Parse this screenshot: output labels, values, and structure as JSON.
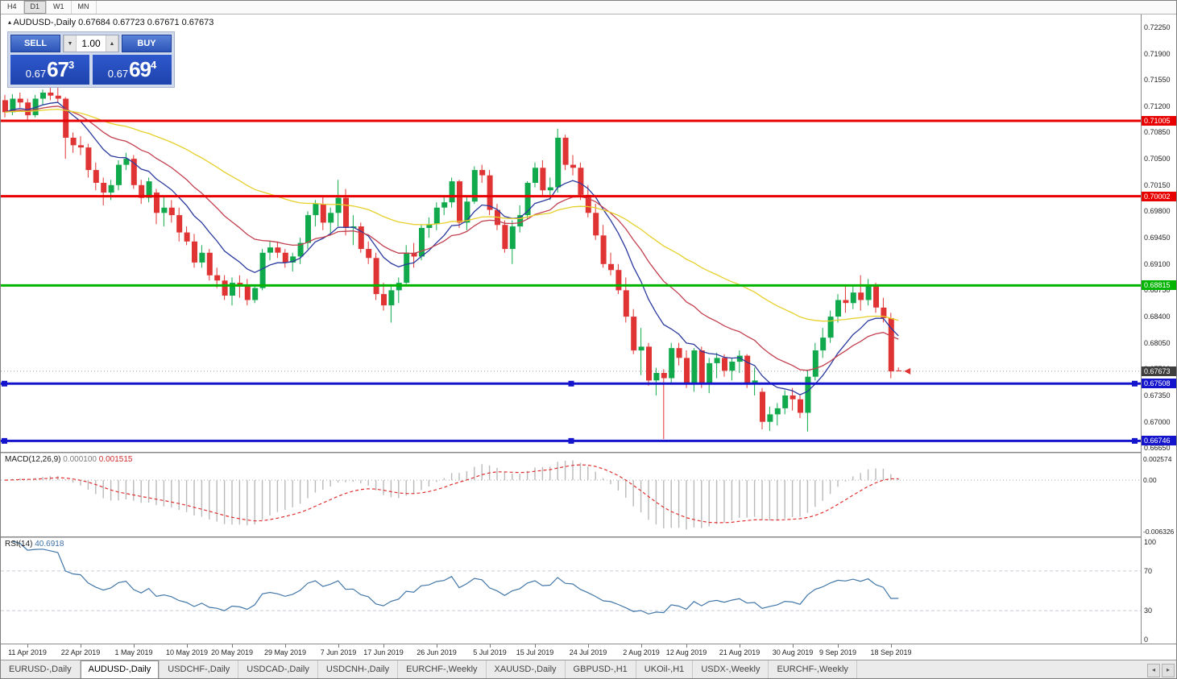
{
  "icons": {
    "collapse_triangle": "▴",
    "volume_down": "▼",
    "volume_up": "▲",
    "tab_scroll_left": "◂",
    "tab_scroll_right": "▸"
  },
  "toolbar": {
    "timeframes": [
      {
        "label": "H4",
        "active": false
      },
      {
        "label": "D1",
        "active": true
      },
      {
        "label": "W1",
        "active": false
      },
      {
        "label": "MN",
        "active": false
      }
    ]
  },
  "window": {
    "symbol_title": "AUDUSD-,Daily",
    "ohlc_text": "0.67684 0.67723 0.67671 0.67673"
  },
  "one_click": {
    "sell_label": "SELL",
    "buy_label": "BUY",
    "volume": "1.00",
    "sell_price": {
      "small": "0.67",
      "big": "67",
      "sup": "3"
    },
    "buy_price": {
      "small": "0.67",
      "big": "69",
      "sup": "4"
    }
  },
  "chart_data": {
    "type": "candlestick",
    "symbol": "AUDUSD-",
    "timeframe": "Daily",
    "up_color": "#10a94c",
    "down_color": "#e03434",
    "y_range": {
      "min": 0.666,
      "max": 0.7242
    },
    "y_ticks": [
      "0.72250",
      "0.71900",
      "0.71550",
      "0.71200",
      "0.70850",
      "0.70500",
      "0.70150",
      "0.69800",
      "0.69450",
      "0.69100",
      "0.68750",
      "0.68400",
      "0.68050",
      "0.67700",
      "0.67350",
      "0.67000",
      "0.66650"
    ],
    "x_labels": [
      {
        "i": 3,
        "t": "11 Apr 2019"
      },
      {
        "i": 10,
        "t": "22 Apr 2019"
      },
      {
        "i": 17,
        "t": "1 May 2019"
      },
      {
        "i": 24,
        "t": "10 May 2019"
      },
      {
        "i": 30,
        "t": "20 May 2019"
      },
      {
        "i": 37,
        "t": "29 May 2019"
      },
      {
        "i": 44,
        "t": "7 Jun 2019"
      },
      {
        "i": 50,
        "t": "17 Jun 2019"
      },
      {
        "i": 57,
        "t": "26 Jun 2019"
      },
      {
        "i": 64,
        "t": "5 Jul 2019"
      },
      {
        "i": 70,
        "t": "15 Jul 2019"
      },
      {
        "i": 77,
        "t": "24 Jul 2019"
      },
      {
        "i": 84,
        "t": "2 Aug 2019"
      },
      {
        "i": 90,
        "t": "12 Aug 2019"
      },
      {
        "i": 97,
        "t": "21 Aug 2019"
      },
      {
        "i": 104,
        "t": "30 Aug 2019"
      },
      {
        "i": 110,
        "t": "9 Sep 2019"
      },
      {
        "i": 117,
        "t": "18 Sep 2019"
      }
    ],
    "ohlc": [
      [
        0.7128,
        0.7135,
        0.7105,
        0.7112
      ],
      [
        0.7112,
        0.7136,
        0.7108,
        0.713
      ],
      [
        0.713,
        0.7138,
        0.7118,
        0.7125
      ],
      [
        0.7125,
        0.713,
        0.71,
        0.7108
      ],
      [
        0.7108,
        0.7135,
        0.7105,
        0.713
      ],
      [
        0.713,
        0.7142,
        0.7122,
        0.7138
      ],
      [
        0.7138,
        0.7147,
        0.7128,
        0.7134
      ],
      [
        0.7134,
        0.7145,
        0.7125,
        0.713
      ],
      [
        0.713,
        0.7132,
        0.705,
        0.7078
      ],
      [
        0.7078,
        0.7085,
        0.7058,
        0.7068
      ],
      [
        0.7068,
        0.708,
        0.7055,
        0.7065
      ],
      [
        0.7065,
        0.707,
        0.7025,
        0.7035
      ],
      [
        0.7035,
        0.7045,
        0.7008,
        0.7018
      ],
      [
        0.7018,
        0.7025,
        0.6988,
        0.7005
      ],
      [
        0.7005,
        0.7022,
        0.6995,
        0.7015
      ],
      [
        0.7015,
        0.7048,
        0.7008,
        0.7042
      ],
      [
        0.7042,
        0.7058,
        0.7035,
        0.705
      ],
      [
        0.705,
        0.7055,
        0.701,
        0.7015
      ],
      [
        0.7015,
        0.7022,
        0.699,
        0.6998
      ],
      [
        0.6998,
        0.7025,
        0.6992,
        0.702
      ],
      [
        0.7005,
        0.701,
        0.6963,
        0.6978
      ],
      [
        0.6978,
        0.7,
        0.696,
        0.6985
      ],
      [
        0.6985,
        0.6995,
        0.6965,
        0.6975
      ],
      [
        0.6975,
        0.6985,
        0.694,
        0.6952
      ],
      [
        0.6952,
        0.696,
        0.6935,
        0.694
      ],
      [
        0.694,
        0.695,
        0.6905,
        0.6912
      ],
      [
        0.6912,
        0.6935,
        0.6905,
        0.6925
      ],
      [
        0.6925,
        0.693,
        0.6888,
        0.6895
      ],
      [
        0.6895,
        0.6905,
        0.6878,
        0.6888
      ],
      [
        0.6888,
        0.6895,
        0.6862,
        0.6868
      ],
      [
        0.6868,
        0.6892,
        0.6855,
        0.6885
      ],
      [
        0.6885,
        0.6895,
        0.6865,
        0.688
      ],
      [
        0.688,
        0.689,
        0.6855,
        0.6862
      ],
      [
        0.6862,
        0.6882,
        0.6858,
        0.6878
      ],
      [
        0.6878,
        0.693,
        0.6875,
        0.6925
      ],
      [
        0.6925,
        0.694,
        0.6915,
        0.6932
      ],
      [
        0.6932,
        0.694,
        0.6918,
        0.6925
      ],
      [
        0.6925,
        0.693,
        0.6905,
        0.6912
      ],
      [
        0.6912,
        0.6925,
        0.69,
        0.692
      ],
      [
        0.692,
        0.6945,
        0.691,
        0.6938
      ],
      [
        0.6938,
        0.698,
        0.693,
        0.6975
      ],
      [
        0.6975,
        0.6995,
        0.696,
        0.699
      ],
      [
        0.699,
        0.7,
        0.6955,
        0.6965
      ],
      [
        0.6965,
        0.6985,
        0.695,
        0.6978
      ],
      [
        0.6978,
        0.7022,
        0.696,
        0.6998
      ],
      [
        0.6998,
        0.701,
        0.6948,
        0.6958
      ],
      [
        0.6958,
        0.6975,
        0.6935,
        0.696
      ],
      [
        0.696,
        0.6965,
        0.6925,
        0.693
      ],
      [
        0.693,
        0.694,
        0.691,
        0.6918
      ],
      [
        0.6918,
        0.6925,
        0.6862,
        0.687
      ],
      [
        0.687,
        0.6885,
        0.6848,
        0.6855
      ],
      [
        0.6855,
        0.6883,
        0.6832,
        0.6875
      ],
      [
        0.6875,
        0.6892,
        0.6858,
        0.6885
      ],
      [
        0.6885,
        0.6935,
        0.688,
        0.6925
      ],
      [
        0.6925,
        0.6938,
        0.6905,
        0.692
      ],
      [
        0.692,
        0.6962,
        0.6915,
        0.6958
      ],
      [
        0.6958,
        0.6972,
        0.6945,
        0.6963
      ],
      [
        0.6963,
        0.6992,
        0.6955,
        0.6985
      ],
      [
        0.6985,
        0.7,
        0.6975,
        0.6992
      ],
      [
        0.6992,
        0.7025,
        0.6985,
        0.702
      ],
      [
        0.702,
        0.7022,
        0.6958,
        0.6965
      ],
      [
        0.6965,
        0.7,
        0.6955,
        0.6993
      ],
      [
        0.6993,
        0.704,
        0.699,
        0.7035
      ],
      [
        0.7035,
        0.7042,
        0.7018,
        0.7028
      ],
      [
        0.7028,
        0.7035,
        0.6975,
        0.6982
      ],
      [
        0.6982,
        0.699,
        0.6955,
        0.6962
      ],
      [
        0.6962,
        0.6968,
        0.6925,
        0.693
      ],
      [
        0.693,
        0.6968,
        0.691,
        0.696
      ],
      [
        0.696,
        0.6988,
        0.6952,
        0.6975
      ],
      [
        0.6975,
        0.702,
        0.697,
        0.7018
      ],
      [
        0.7018,
        0.7045,
        0.7012,
        0.7038
      ],
      [
        0.7038,
        0.7048,
        0.7,
        0.7008
      ],
      [
        0.7008,
        0.7025,
        0.6995,
        0.7012
      ],
      [
        0.7012,
        0.709,
        0.7005,
        0.7078
      ],
      [
        0.7078,
        0.7082,
        0.7035,
        0.7042
      ],
      [
        0.7042,
        0.7055,
        0.7028,
        0.7038
      ],
      [
        0.7038,
        0.7045,
        0.6995,
        0.7002
      ],
      [
        0.7002,
        0.7015,
        0.6972,
        0.6978
      ],
      [
        0.6978,
        0.699,
        0.6942,
        0.6948
      ],
      [
        0.6948,
        0.6962,
        0.6905,
        0.691
      ],
      [
        0.691,
        0.6925,
        0.6895,
        0.6902
      ],
      [
        0.6902,
        0.691,
        0.687,
        0.6875
      ],
      [
        0.6875,
        0.6892,
        0.6832,
        0.684
      ],
      [
        0.684,
        0.685,
        0.679,
        0.6795
      ],
      [
        0.6795,
        0.6825,
        0.6762,
        0.68
      ],
      [
        0.68,
        0.6805,
        0.6748,
        0.6755
      ],
      [
        0.6755,
        0.6772,
        0.6735,
        0.6765
      ],
      [
        0.6765,
        0.677,
        0.6677,
        0.6758
      ],
      [
        0.6758,
        0.6805,
        0.675,
        0.6798
      ],
      [
        0.6798,
        0.6805,
        0.6775,
        0.6785
      ],
      [
        0.6785,
        0.6795,
        0.6745,
        0.6752
      ],
      [
        0.6752,
        0.6798,
        0.674,
        0.6795
      ],
      [
        0.6795,
        0.68,
        0.6745,
        0.6752
      ],
      [
        0.6752,
        0.6785,
        0.6738,
        0.6778
      ],
      [
        0.6778,
        0.6792,
        0.6758,
        0.6785
      ],
      [
        0.6785,
        0.679,
        0.676,
        0.6768
      ],
      [
        0.6768,
        0.6785,
        0.6755,
        0.678
      ],
      [
        0.678,
        0.6795,
        0.6765,
        0.6788
      ],
      [
        0.6788,
        0.679,
        0.6745,
        0.6752
      ],
      [
        0.6752,
        0.6772,
        0.6735,
        0.6755
      ],
      [
        0.674,
        0.6745,
        0.669,
        0.67
      ],
      [
        0.67,
        0.672,
        0.6688,
        0.671
      ],
      [
        0.671,
        0.6725,
        0.6695,
        0.6718
      ],
      [
        0.6718,
        0.6742,
        0.671,
        0.6735
      ],
      [
        0.6735,
        0.6745,
        0.6715,
        0.673
      ],
      [
        0.673,
        0.6735,
        0.6705,
        0.6712
      ],
      [
        0.6712,
        0.6768,
        0.6687,
        0.676
      ],
      [
        0.676,
        0.6805,
        0.6755,
        0.6795
      ],
      [
        0.6795,
        0.6825,
        0.6785,
        0.6812
      ],
      [
        0.6812,
        0.6848,
        0.6805,
        0.684
      ],
      [
        0.684,
        0.687,
        0.6832,
        0.6862
      ],
      [
        0.6862,
        0.6882,
        0.6845,
        0.6858
      ],
      [
        0.6858,
        0.688,
        0.685,
        0.6872
      ],
      [
        0.6872,
        0.6895,
        0.6848,
        0.6862
      ],
      [
        0.6862,
        0.689,
        0.6855,
        0.688
      ],
      [
        0.688,
        0.6885,
        0.6845,
        0.6852
      ],
      [
        0.6852,
        0.6865,
        0.6832,
        0.6838
      ],
      [
        0.6838,
        0.6845,
        0.6758,
        0.6767
      ],
      [
        0.67684,
        0.67723,
        0.67671,
        0.67673
      ]
    ],
    "moving_averages": [
      {
        "period": 10,
        "color": "#2b3a9e"
      },
      {
        "period": 21,
        "color": "#c2404f"
      },
      {
        "period": 50,
        "color": "#e6d02a"
      }
    ],
    "hlines": [
      {
        "price": 0.71005,
        "label": "0.71005",
        "color": "#e80000",
        "width": 3,
        "handles": false
      },
      {
        "price": 0.70002,
        "label": "0.70002",
        "color": "#e80000",
        "width": 3,
        "handles": false
      },
      {
        "price": 0.68815,
        "label": "0.68815",
        "color": "#00b400",
        "width": 3,
        "handles": false
      },
      {
        "price": 0.67508,
        "label": "0.67508",
        "color": "#1414cc",
        "width": 3,
        "handles": true
      },
      {
        "price": 0.66746,
        "label": "0.66746",
        "color": "#1414cc",
        "width": 3,
        "handles": true
      }
    ],
    "current_price": {
      "value": 0.67673,
      "label": "0.67673",
      "badge_color": "#3f3f3f"
    }
  },
  "macd": {
    "label": "MACD(12,26,9)",
    "value_main": "0.000100",
    "value_signal": "0.001515",
    "fast": 12,
    "slow": 26,
    "signal": 9,
    "axis_top": "0.002574",
    "axis_zero": "0.00",
    "axis_bottom": "-0.006326",
    "histogram_color": "#b9b9b9",
    "signal_color": "#e03030"
  },
  "rsi": {
    "label": "RSI(14)",
    "value": "40.6918",
    "period": 14,
    "levels": [
      70,
      30
    ],
    "axis": [
      "100",
      "70",
      "30",
      "0"
    ],
    "line_color": "#4277a8",
    "level_color": "#c6cbd6"
  },
  "tabs": {
    "items": [
      {
        "label": "EURUSD-,Daily",
        "active": false
      },
      {
        "label": "AUDUSD-,Daily",
        "active": true
      },
      {
        "label": "USDCHF-,Daily",
        "active": false
      },
      {
        "label": "USDCAD-,Daily",
        "active": false
      },
      {
        "label": "USDCNH-,Daily",
        "active": false
      },
      {
        "label": "EURCHF-,Weekly",
        "active": false
      },
      {
        "label": "XAUUSD-,Daily",
        "active": false
      },
      {
        "label": "GBPUSD-,H1",
        "active": false
      },
      {
        "label": "UKOil-,H1",
        "active": false
      },
      {
        "label": "USDX-,Weekly",
        "active": false
      },
      {
        "label": "EURCHF-,Weekly",
        "active": false
      }
    ]
  }
}
